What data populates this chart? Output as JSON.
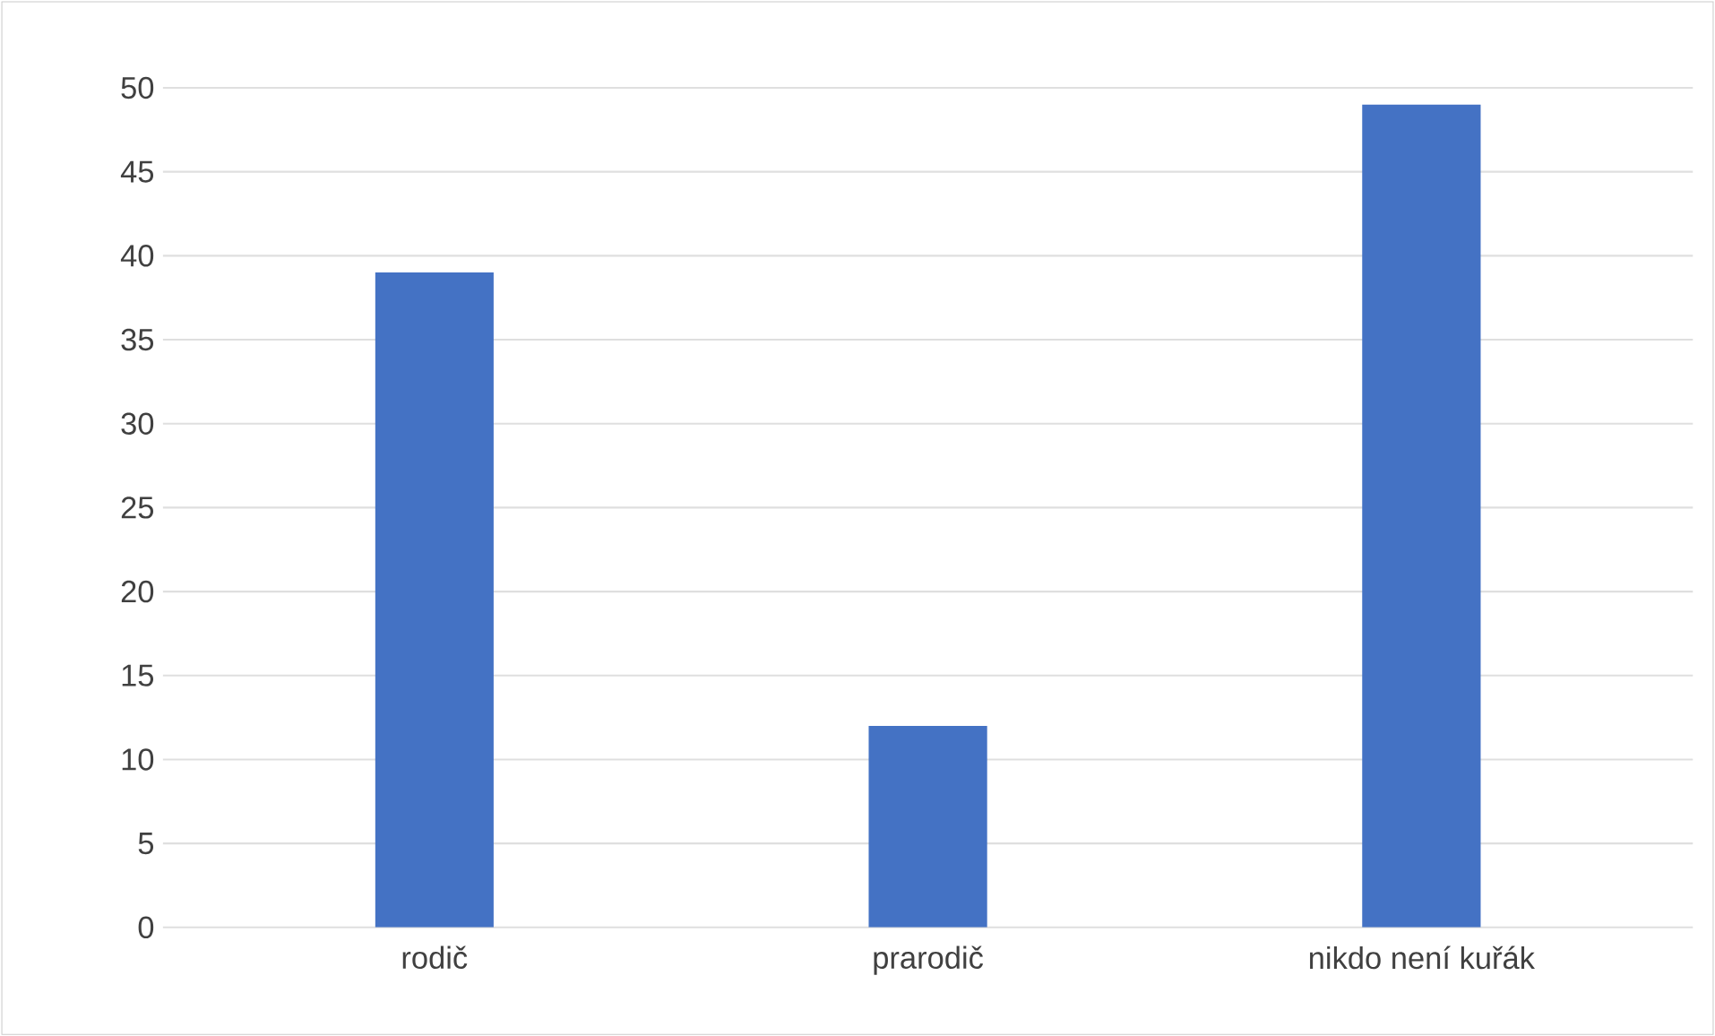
{
  "chart_data": {
    "type": "bar",
    "categories": [
      "rodič",
      "prarodič",
      "nikdo není kuřák"
    ],
    "values": [
      39,
      12,
      49
    ],
    "color": "#4472c4",
    "ylim": [
      0,
      50
    ],
    "yticks": [
      0,
      5,
      10,
      15,
      20,
      25,
      30,
      35,
      40,
      45,
      50
    ],
    "grid": "y"
  }
}
